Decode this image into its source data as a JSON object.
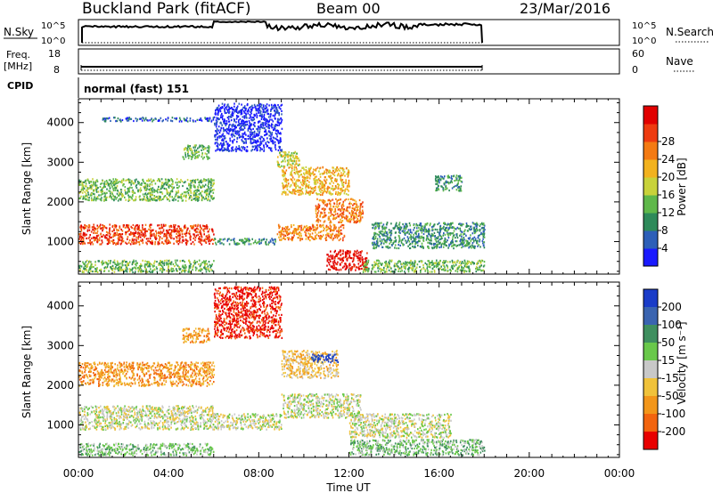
{
  "header": {
    "station": "Buckland Park (fitACF)",
    "beam": "Beam 00",
    "date": "23/Mar/2016"
  },
  "status_panels": {
    "nsky_label": "N.Sky",
    "nsky_ticks": [
      "10^5",
      "10^0"
    ],
    "nsearch_label": "N.Search",
    "nsearch_ticks": [
      "10^5",
      "10^0"
    ],
    "freq_label_line1": "Freq.",
    "freq_label_line2": "[MHz]",
    "freq_ticks": [
      "18",
      "8"
    ],
    "nave_label": "Nave",
    "nave_ticks": [
      "60",
      "0"
    ],
    "cpid_label": "CPID",
    "cpid_text": "normal (fast) 151"
  },
  "x_axis": {
    "label": "Time UT",
    "ticks": [
      "00:00",
      "04:00",
      "08:00",
      "12:00",
      "16:00",
      "20:00",
      "00:00"
    ],
    "range_hours": [
      0,
      24
    ]
  },
  "chart_data": [
    {
      "type": "heatmap",
      "panel": "power",
      "ylabel": "Slant Range [km]",
      "yticks": [
        1000,
        2000,
        3000,
        4000
      ],
      "ylim": [
        180,
        4600
      ],
      "xlim_hours": [
        0,
        24
      ],
      "colorbar_label": "Power [dB]",
      "colorbar_ticks": [
        "4",
        "8",
        "12",
        "16",
        "20",
        "24",
        "28"
      ],
      "colorbar_colors": [
        "#1a1aff",
        "#2d5fb8",
        "#2e8a5a",
        "#5fb84a",
        "#c8d23a",
        "#f2b21e",
        "#f47a12",
        "#ee3b10",
        "#e10000"
      ],
      "scatter_bands": [
        {
          "t0": 0.0,
          "t1": 6.0,
          "r0": 950,
          "r1": 1450,
          "level": 7
        },
        {
          "t0": 0.0,
          "t1": 6.0,
          "r0": 2050,
          "r1": 2600,
          "level": 3
        },
        {
          "t0": 0.0,
          "t1": 6.0,
          "r0": 250,
          "r1": 550,
          "level": 3
        },
        {
          "t0": 4.6,
          "t1": 5.8,
          "r0": 3100,
          "r1": 3450,
          "level": 3
        },
        {
          "t0": 1.0,
          "t1": 6.0,
          "r0": 4050,
          "r1": 4150,
          "level": 1
        },
        {
          "t0": 6.0,
          "t1": 8.8,
          "r0": 950,
          "r1": 1100,
          "level": 2
        },
        {
          "t0": 8.8,
          "t1": 11.8,
          "r0": 1050,
          "r1": 1450,
          "level": 6
        },
        {
          "t0": 10.5,
          "t1": 12.6,
          "r0": 1500,
          "r1": 2100,
          "level": 6
        },
        {
          "t0": 9.0,
          "t1": 12.0,
          "r0": 2200,
          "r1": 2900,
          "level": 5
        },
        {
          "t0": 8.8,
          "t1": 9.8,
          "r0": 2900,
          "r1": 3300,
          "level": 4
        },
        {
          "t0": 11.0,
          "t1": 12.8,
          "r0": 300,
          "r1": 800,
          "level": 8
        },
        {
          "t0": 12.6,
          "t1": 18.0,
          "r0": 250,
          "r1": 550,
          "level": 3
        },
        {
          "t0": 13.0,
          "t1": 18.0,
          "r0": 850,
          "r1": 1500,
          "level": 2
        },
        {
          "t0": 15.8,
          "t1": 17.0,
          "r0": 2300,
          "r1": 2700,
          "level": 2
        },
        {
          "t0": 6.0,
          "t1": 9.0,
          "r0": 3300,
          "r1": 4500,
          "level": 0
        }
      ]
    },
    {
      "type": "heatmap",
      "panel": "velocity",
      "ylabel": "Slant Range [km]",
      "yticks": [
        1000,
        2000,
        3000,
        4000
      ],
      "ylim": [
        180,
        4600
      ],
      "xlim_hours": [
        0,
        24
      ],
      "colorbar_label": "Velocity [m s⁻¹]",
      "colorbar_ticks": [
        "200",
        "100",
        "50",
        "15",
        "-15",
        "-50",
        "-100",
        "-200"
      ],
      "colorbar_colors": [
        "#1a3cc8",
        "#3a64b0",
        "#3f8f5f",
        "#69c84a",
        "#c8c8c8",
        "#f0c23a",
        "#f2961a",
        "#f2640f",
        "#e80000"
      ],
      "scatter_bands": [
        {
          "t0": 0.0,
          "t1": 6.0,
          "r0": 900,
          "r1": 1500,
          "level": 4
        },
        {
          "t0": 0.0,
          "t1": 6.0,
          "r0": 2000,
          "r1": 2600,
          "level": 6
        },
        {
          "t0": 0.0,
          "t1": 6.0,
          "r0": 250,
          "r1": 550,
          "level": 3
        },
        {
          "t0": 4.6,
          "t1": 5.8,
          "r0": 3100,
          "r1": 3450,
          "level": 6
        },
        {
          "t0": 6.0,
          "t1": 9.0,
          "r0": 900,
          "r1": 1300,
          "level": 4
        },
        {
          "t0": 9.0,
          "t1": 12.5,
          "r0": 1200,
          "r1": 1800,
          "level": 4
        },
        {
          "t0": 9.0,
          "t1": 11.5,
          "r0": 2200,
          "r1": 2900,
          "level": 5
        },
        {
          "t0": 10.3,
          "t1": 11.5,
          "r0": 2600,
          "r1": 2800,
          "level": 0
        },
        {
          "t0": 12.0,
          "t1": 18.0,
          "r0": 250,
          "r1": 650,
          "level": 3
        },
        {
          "t0": 12.0,
          "t1": 16.5,
          "r0": 700,
          "r1": 1300,
          "level": 4
        },
        {
          "t0": 6.0,
          "t1": 9.0,
          "r0": 3200,
          "r1": 4500,
          "level": 8
        }
      ]
    }
  ]
}
